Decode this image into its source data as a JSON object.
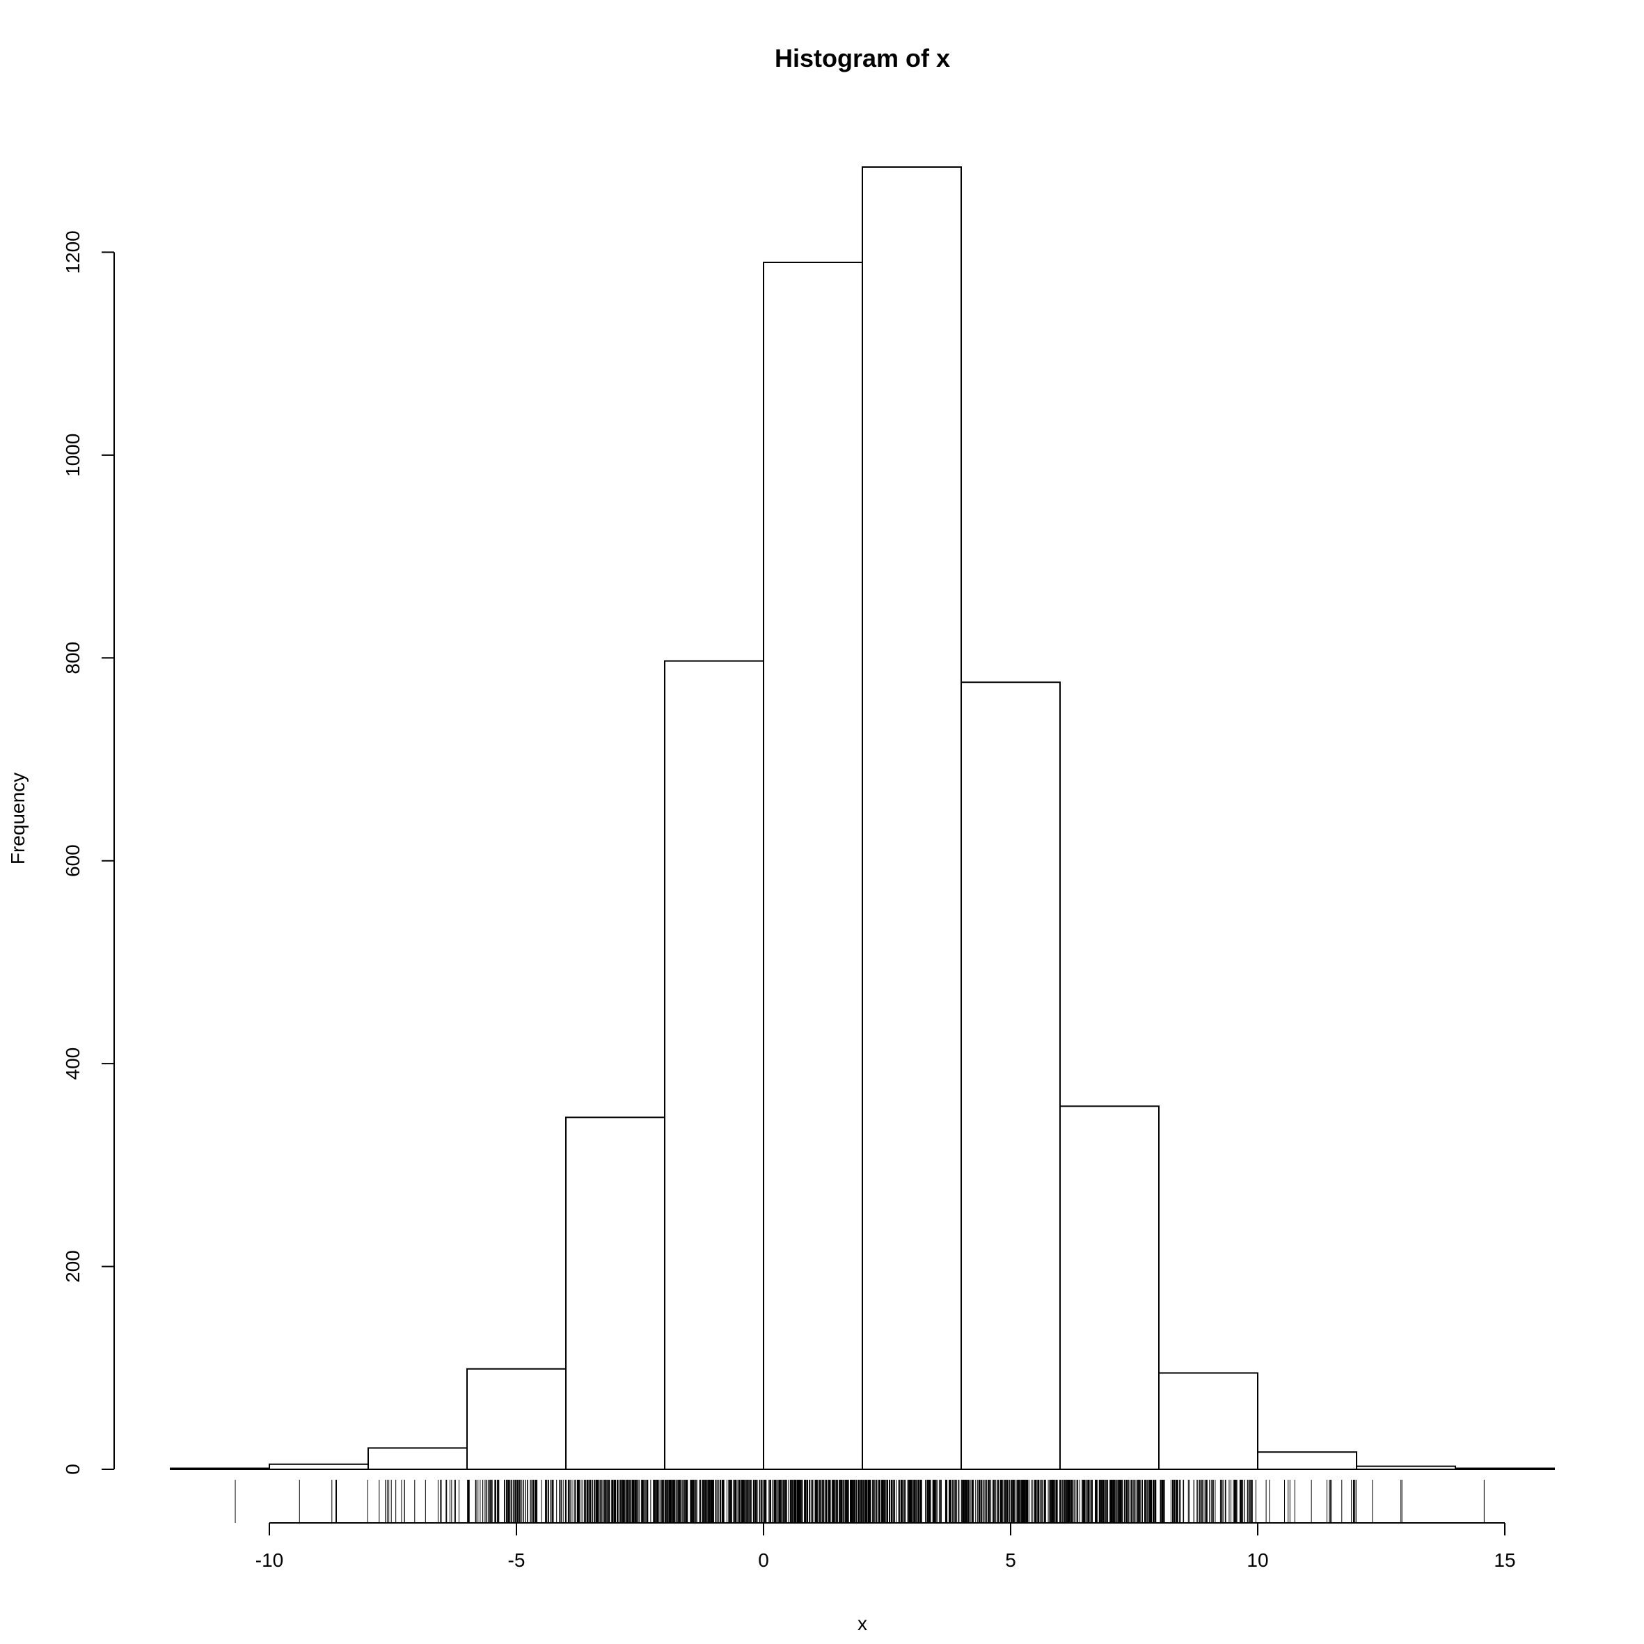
{
  "chart_data": {
    "type": "bar",
    "title": "Histogram of x",
    "xlabel": "x",
    "ylabel": "Frequency",
    "bin_edges": [
      -12,
      -10,
      -8,
      -6,
      -4,
      -2,
      0,
      2,
      4,
      6,
      8,
      10,
      12,
      14,
      16
    ],
    "values": [
      1,
      5,
      21,
      99,
      347,
      797,
      1190,
      1284,
      776,
      358,
      95,
      17,
      3,
      1
    ],
    "xlim": [
      -12,
      16
    ],
    "ylim": [
      0,
      1284
    ],
    "x_ticks": [
      -10,
      -5,
      0,
      5,
      10,
      15
    ],
    "x_tick_labels": [
      "-10",
      "-5",
      "0",
      "5",
      "10",
      "15"
    ],
    "y_ticks": [
      0,
      200,
      400,
      600,
      800,
      1000,
      1200
    ],
    "y_tick_labels": [
      "0",
      "200",
      "400",
      "600",
      "800",
      "1000",
      "1200"
    ],
    "rug": true,
    "grid": false,
    "bar_fill": "#ffffff",
    "bar_stroke": "#000000"
  }
}
